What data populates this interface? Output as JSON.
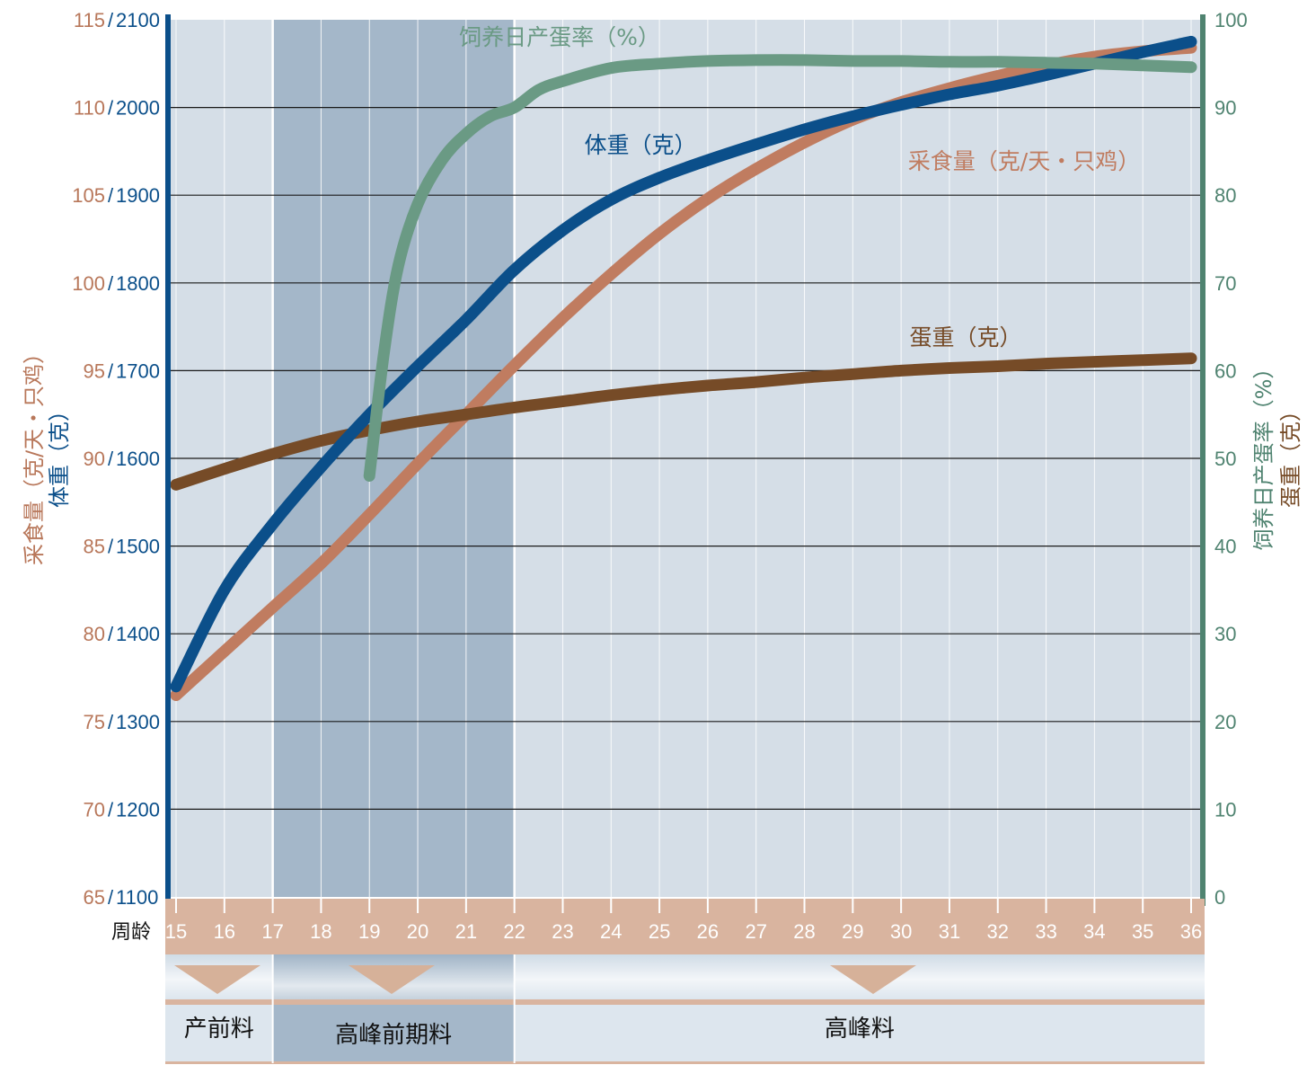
{
  "chart_data": {
    "type": "line",
    "x_axis": {
      "label": "周龄",
      "categories": [
        15,
        16,
        17,
        18,
        19,
        20,
        21,
        22,
        23,
        24,
        25,
        26,
        27,
        28,
        29,
        30,
        31,
        32,
        33,
        34,
        35,
        36
      ]
    },
    "y_left_feed": {
      "ticks": [
        65,
        70,
        75,
        80,
        85,
        90,
        95,
        100,
        105,
        110,
        115
      ],
      "range": [
        65,
        115
      ],
      "color": "#b8775a"
    },
    "y_left_weight": {
      "ticks": [
        1100,
        1200,
        1300,
        1400,
        1500,
        1600,
        1700,
        1800,
        1900,
        2000,
        2100
      ],
      "range": [
        1100,
        2100
      ],
      "color": "#0b4f8a"
    },
    "y_left_sep": "/",
    "y_left_label_feed": "采食量（克/天・只鸡）",
    "y_left_label_weight": "体重（克）",
    "y_right": {
      "ticks": [
        0,
        10,
        20,
        30,
        40,
        50,
        60,
        70,
        80,
        90,
        100
      ],
      "range": [
        0,
        100
      ]
    },
    "y_right_label_rate": "饲养日产蛋率（%）",
    "y_right_label_egg": "蛋重（克）",
    "grid": true,
    "series": [
      {
        "name": "饲养日产蛋率（%）",
        "axis": "right",
        "color": "#6a9a84",
        "points": [
          [
            19,
            48
          ],
          [
            19.3,
            62
          ],
          [
            19.6,
            72
          ],
          [
            20,
            79
          ],
          [
            20.5,
            84
          ],
          [
            21,
            87
          ],
          [
            21.5,
            89
          ],
          [
            22,
            90
          ],
          [
            22.5,
            92
          ],
          [
            23,
            93
          ],
          [
            24,
            94.5
          ],
          [
            25,
            95
          ],
          [
            26,
            95.3
          ],
          [
            27,
            95.4
          ],
          [
            28,
            95.4
          ],
          [
            29,
            95.3
          ],
          [
            30,
            95.3
          ],
          [
            31,
            95.2
          ],
          [
            32,
            95.2
          ],
          [
            33,
            95.1
          ],
          [
            34,
            95
          ],
          [
            35,
            94.8
          ],
          [
            36,
            94.6
          ]
        ],
        "label_text": "饲养日产蛋率（%）"
      },
      {
        "name": "体重（克）",
        "axis": "left_weight",
        "color": "#0b4f8a",
        "points": [
          [
            15,
            1340
          ],
          [
            16,
            1450
          ],
          [
            17,
            1525
          ],
          [
            18,
            1590
          ],
          [
            19,
            1650
          ],
          [
            20,
            1705
          ],
          [
            21,
            1758
          ],
          [
            22,
            1815
          ],
          [
            23,
            1860
          ],
          [
            24,
            1895
          ],
          [
            25,
            1920
          ],
          [
            26,
            1940
          ],
          [
            27,
            1958
          ],
          [
            28,
            1975
          ],
          [
            29,
            1990
          ],
          [
            30,
            2003
          ],
          [
            31,
            2015
          ],
          [
            32,
            2025
          ],
          [
            33,
            2037
          ],
          [
            34,
            2050
          ],
          [
            35,
            2063
          ],
          [
            36,
            2075
          ]
        ],
        "label_text": "体重（克）"
      },
      {
        "name": "采食量（克/天・只鸡）",
        "axis": "left_feed",
        "color": "#c07c60",
        "points": [
          [
            15,
            76.5
          ],
          [
            16,
            79
          ],
          [
            17,
            81.5
          ],
          [
            18,
            84
          ],
          [
            19,
            86.8
          ],
          [
            20,
            89.7
          ],
          [
            21,
            92.5
          ],
          [
            22,
            95.3
          ],
          [
            23,
            98
          ],
          [
            24,
            100.5
          ],
          [
            25,
            102.8
          ],
          [
            26,
            104.8
          ],
          [
            27,
            106.5
          ],
          [
            28,
            108
          ],
          [
            29,
            109.3
          ],
          [
            30,
            110.3
          ],
          [
            31,
            111.1
          ],
          [
            32,
            111.8
          ],
          [
            33,
            112.4
          ],
          [
            34,
            112.9
          ],
          [
            35,
            113.2
          ],
          [
            36,
            113.4
          ]
        ],
        "label_text": "采食量（克/天・只鸡）"
      },
      {
        "name": "蛋重（克）",
        "axis": "right",
        "color": "#764b27",
        "points": [
          [
            15,
            47
          ],
          [
            16,
            48.8
          ],
          [
            17,
            50.5
          ],
          [
            18,
            52
          ],
          [
            19,
            53.2
          ],
          [
            20,
            54.2
          ],
          [
            21,
            55
          ],
          [
            22,
            55.8
          ],
          [
            23,
            56.5
          ],
          [
            24,
            57.2
          ],
          [
            25,
            57.8
          ],
          [
            26,
            58.3
          ],
          [
            27,
            58.7
          ],
          [
            28,
            59.2
          ],
          [
            29,
            59.6
          ],
          [
            30,
            60
          ],
          [
            31,
            60.3
          ],
          [
            32,
            60.5
          ],
          [
            33,
            60.8
          ],
          [
            34,
            61
          ],
          [
            35,
            61.2
          ],
          [
            36,
            61.4
          ]
        ],
        "label_text": "蛋重（克）"
      }
    ],
    "feed_phases": [
      {
        "label": "产前料",
        "from": 15,
        "to": 17
      },
      {
        "label": "高峰前期料",
        "from": 17,
        "to": 22
      },
      {
        "label": "高峰料",
        "from": 22,
        "to": 36
      }
    ],
    "colors": {
      "plot_bg": "#d5dee7",
      "pre_peak_band": "#a4b7c9",
      "axis_band": "#d9b49f",
      "arrow": "#d6b199",
      "left_axis": "#0b4f8a",
      "right_axis": "#4f8370"
    }
  }
}
